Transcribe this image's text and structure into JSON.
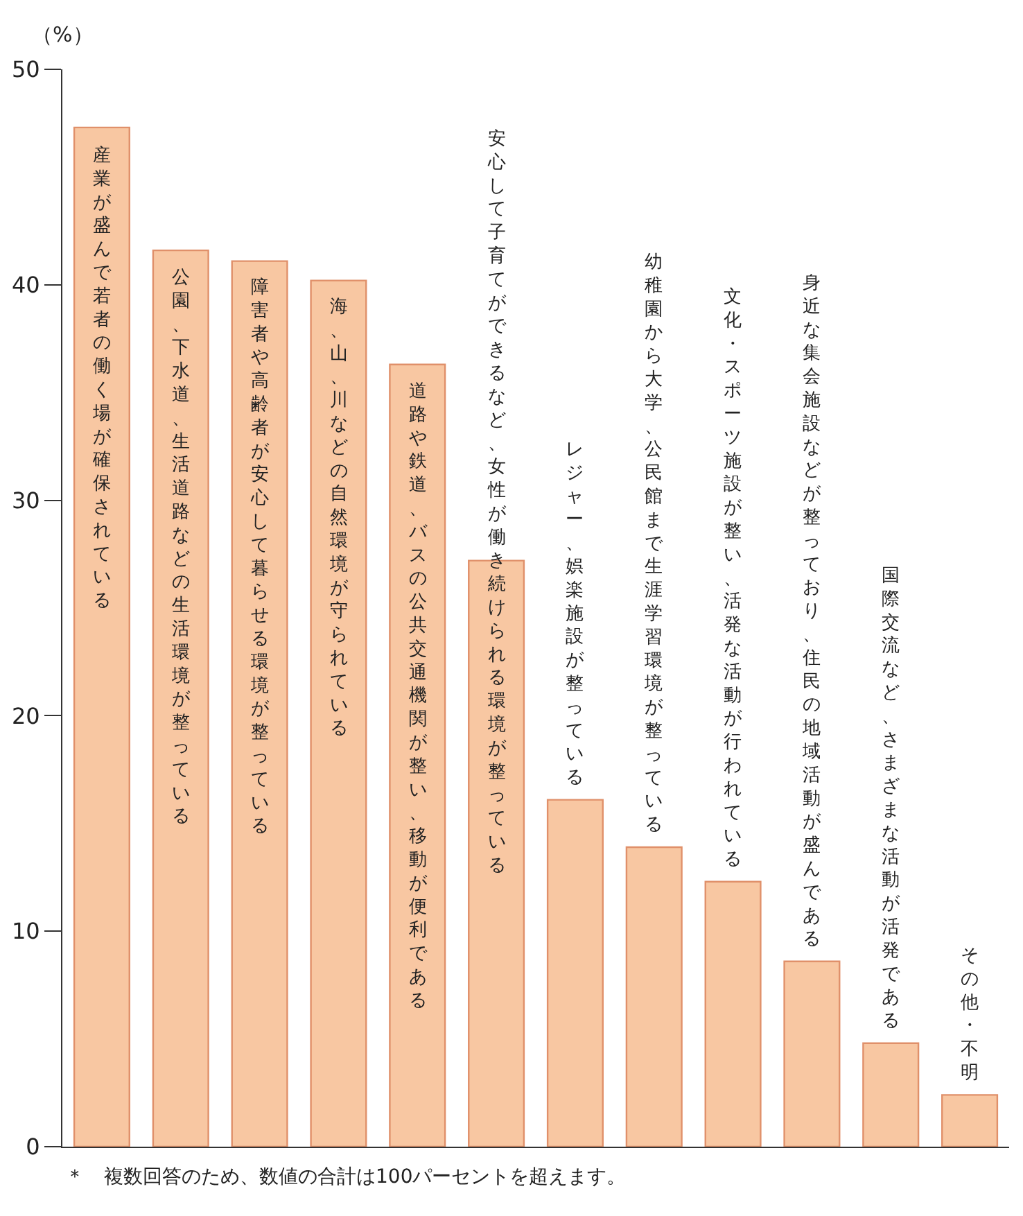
{
  "chart_data": {
    "type": "bar",
    "ylabel": "（%）",
    "categories": [
      "産業が盛んで若者の働く場が確保されている",
      "公園、下水道、生活道路などの生活環境が整っている",
      "障害者や高齢者が安心して暮らせる環境が整っている",
      "海、山、川などの自然環境が守られている",
      "道路や鉄道、バスの公共交通機関が整い、移動が便利である",
      "安心して子育てができるなど、女性が働き続けられる環境が整っている",
      "レジャー、娯楽施設が整っている",
      "幼稚園から大学、公民館まで生涯学習環境が整っている",
      "文化・スポーツ施設が整い、活発な活動が行われている",
      "身近な集会施設などが整っており、住民の地域活動が盛んである",
      "国際交流など、さまざまな活動が活発である",
      "その他・不明"
    ],
    "values": [
      47.3,
      41.6,
      41.1,
      40.2,
      36.3,
      27.2,
      16.1,
      13.9,
      12.3,
      8.6,
      4.8,
      2.4
    ],
    "color": "#f8c7a2",
    "ylim": [
      0,
      50
    ],
    "yticks": [
      0,
      10,
      20,
      30,
      40,
      50
    ],
    "grid": false,
    "annotations": [
      "＊　複数回答のため、数値の合計は100パーセントを超えます。"
    ]
  }
}
